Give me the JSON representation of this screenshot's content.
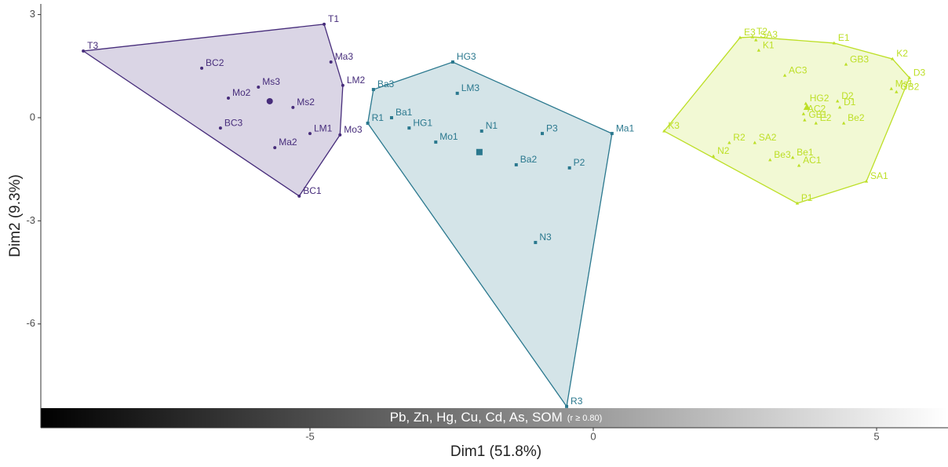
{
  "chart_data": {
    "type": "scatter",
    "xlabel": "Dim1 (51.8%)",
    "ylabel": "Dim2 (9.3%)",
    "xlim": [
      -9.75,
      6.26
    ],
    "ylim": [
      -9.02,
      3.31
    ],
    "xticks": [
      -5,
      0,
      5
    ],
    "yticks": [
      3,
      0,
      -3,
      -6
    ],
    "hull": true,
    "series": [
      {
        "color": "#472d7b",
        "shape": "circle",
        "labels": [
          "T3",
          "T1",
          "Ma3",
          "LM2",
          "BC2",
          "Ms3",
          "Mo2",
          "Ms2",
          "LM1",
          "BC3",
          "Ma2",
          "Mo3",
          "BC1"
        ],
        "x": [
          -9.0,
          -4.75,
          -4.63,
          -4.42,
          -6.91,
          -5.91,
          -6.44,
          -5.3,
          -5.0,
          -6.58,
          -5.62,
          -4.47,
          -5.19
        ],
        "y": [
          1.94,
          2.72,
          1.62,
          0.94,
          1.44,
          0.89,
          0.57,
          0.3,
          -0.46,
          -0.3,
          -0.87,
          -0.5,
          -2.28
        ],
        "center": {
          "x": -5.71,
          "y": 0.48
        }
      },
      {
        "color": "#2a788e",
        "shape": "square",
        "labels": [
          "HG3",
          "Ba3",
          "LM3",
          "Ba1",
          "R1",
          "HG1",
          "N1",
          "Mo1",
          "P3",
          "Ma1",
          "Ba2",
          "P2",
          "N3",
          "R3"
        ],
        "x": [
          -2.48,
          -3.88,
          -2.4,
          -3.56,
          -3.98,
          -3.25,
          -1.97,
          -2.78,
          -0.9,
          0.33,
          -1.36,
          -0.42,
          -1.02,
          -0.47
        ],
        "y": [
          1.62,
          0.82,
          0.71,
          0.0,
          -0.16,
          -0.3,
          -0.39,
          -0.71,
          -0.46,
          -0.46,
          -1.37,
          -1.46,
          -3.63,
          -8.4
        ],
        "center": {
          "x": -2.01,
          "y": -1.0
        }
      },
      {
        "color": "#bddf26",
        "shape": "triangle",
        "labels": [
          "E3",
          "T2",
          "SA3",
          "K1",
          "E1",
          "K2",
          "D3",
          "GB3",
          "AC3",
          "Ms1",
          "GB2",
          "D2",
          "D1",
          "HG2",
          "AC2",
          "GB1",
          "E2",
          "Be2",
          "K3",
          "R2",
          "SA2",
          "N2",
          "Be1",
          "Be3",
          "AC1",
          "SA1",
          "P1"
        ],
        "x": [
          2.59,
          2.81,
          2.87,
          2.92,
          4.25,
          5.28,
          5.58,
          4.46,
          3.38,
          5.26,
          5.35,
          4.31,
          4.35,
          3.75,
          3.71,
          3.73,
          3.93,
          4.42,
          1.25,
          2.4,
          2.85,
          2.12,
          3.52,
          3.12,
          3.63,
          4.82,
          3.6
        ],
        "y": [
          2.33,
          2.35,
          2.26,
          1.96,
          2.17,
          1.71,
          1.16,
          1.55,
          1.23,
          0.84,
          0.75,
          0.48,
          0.3,
          0.41,
          0.11,
          -0.07,
          -0.16,
          -0.16,
          -0.39,
          -0.73,
          -0.73,
          -1.12,
          -1.16,
          -1.23,
          -1.39,
          -1.85,
          -2.49
        ],
        "center": {
          "x": 3.77,
          "y": 0.3
        }
      }
    ],
    "gradient_bar": {
      "text": "Pb, Zn, Hg, Cu, Cd, As, SOM",
      "note": "(r ≥ 0.80)"
    }
  }
}
